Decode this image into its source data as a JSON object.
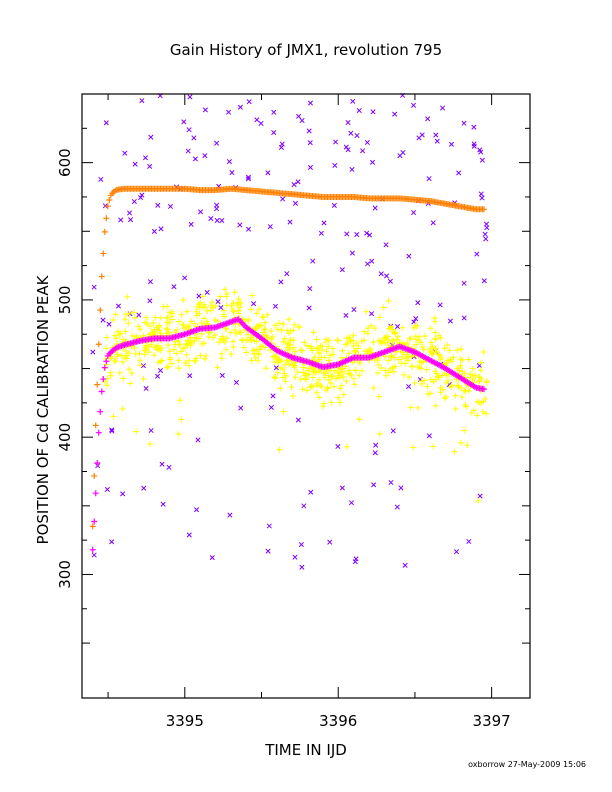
{
  "chart_data": {
    "type": "scatter",
    "title": "Gain History of JMX1, revolution 795",
    "xlabel": "TIME IN IJD",
    "ylabel": "POSITION OF Cd CALIBRATION PEAK",
    "footer": "oxborrow 27-May-2009 15:06",
    "xlim": [
      3394.33,
      3397.25
    ],
    "ylim": [
      210,
      650
    ],
    "x_ticks": [
      3395,
      3396,
      3397
    ],
    "x_tick_labels": [
      "3395",
      "3396",
      "3397"
    ],
    "y_ticks": [
      300,
      400,
      500,
      600
    ],
    "y_tick_labels": [
      "300",
      "400",
      "500",
      "600"
    ],
    "grid": false,
    "legend": "none",
    "colors": {
      "orange": "#ff8000",
      "magenta": "#ff00ff",
      "yellow": "#ffff00",
      "purple": "#8000ff"
    },
    "series": [
      {
        "marker": "plus",
        "color": "#ff8000",
        "x": [
          3394.4,
          3394.42,
          3394.44,
          3394.46,
          3394.48,
          3394.5,
          3394.52,
          3394.55,
          3394.6,
          3394.7,
          3394.8,
          3394.9,
          3395.0,
          3395.1,
          3395.2,
          3395.3,
          3395.4,
          3395.5,
          3395.6,
          3395.7,
          3395.8,
          3395.9,
          3396.0,
          3396.1,
          3396.2,
          3396.3,
          3396.4,
          3396.5,
          3396.6,
          3396.7,
          3396.8,
          3396.9,
          3396.95
        ],
        "y": [
          335,
          410,
          470,
          520,
          552,
          570,
          577,
          580,
          581,
          581,
          581,
          581,
          581,
          580,
          580,
          581,
          580,
          579,
          578,
          577,
          576,
          575,
          575,
          575,
          574,
          574,
          574,
          573,
          572,
          570,
          568,
          566,
          566
        ]
      },
      {
        "marker": "plus",
        "color": "#ff00ff",
        "x": [
          3394.4,
          3394.42,
          3394.44,
          3394.46,
          3394.48,
          3394.5,
          3394.55,
          3394.6,
          3394.7,
          3394.8,
          3394.9,
          3395.0,
          3395.1,
          3395.2,
          3395.3,
          3395.35,
          3395.4,
          3395.5,
          3395.6,
          3395.7,
          3395.8,
          3395.9,
          3396.0,
          3396.1,
          3396.2,
          3396.3,
          3396.4,
          3396.5,
          3396.6,
          3396.7,
          3396.8,
          3396.9,
          3396.95
        ],
        "y": [
          318,
          360,
          405,
          435,
          452,
          460,
          465,
          467,
          470,
          472,
          472,
          475,
          479,
          480,
          484,
          486,
          480,
          472,
          463,
          458,
          455,
          451,
          453,
          458,
          458,
          462,
          466,
          462,
          456,
          450,
          443,
          436,
          435
        ]
      }
    ],
    "scatter_series": [
      {
        "marker": "plus",
        "color": "#ffff00",
        "x_range": [
          3394.4,
          3396.97
        ],
        "center": "magenta",
        "spread": 12,
        "count": 900
      },
      {
        "marker": "cross",
        "color": "#8000ff",
        "x_range": [
          3394.4,
          3396.97
        ],
        "y_range": [
          305,
          650
        ],
        "count": 230
      }
    ]
  }
}
